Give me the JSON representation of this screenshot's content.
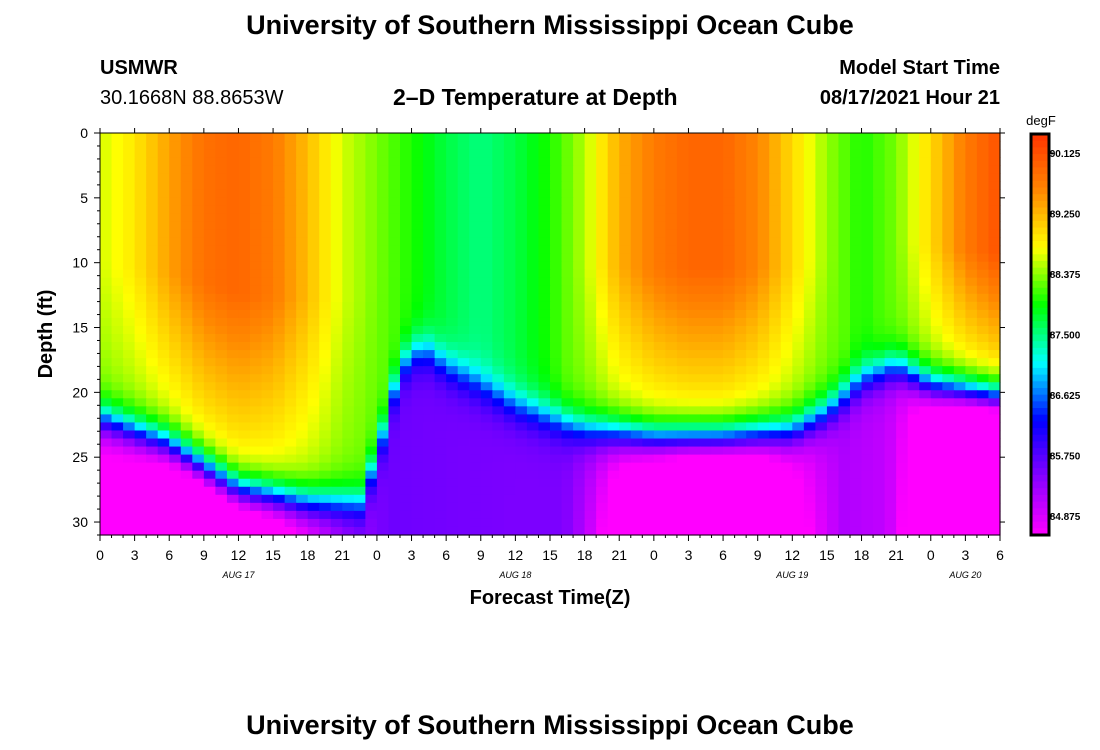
{
  "header": {
    "title": "University of Southern Mississippi Ocean Cube",
    "station_id": "USMWR",
    "coordinates": "30.1668N  88.8653W",
    "plot_title": "2–D Temperature at Depth",
    "model_start_label": "Model Start Time",
    "model_start_value": "08/17/2021 Hour 21"
  },
  "footer": {
    "title": "University of Southern Mississippi Ocean Cube"
  },
  "colors": {
    "background": "#ffffff",
    "colorbar_outline": "#000000",
    "palette": [
      "#ff00ff",
      "#8800ff",
      "#0000ff",
      "#00ffff",
      "#00ff00",
      "#ffff00",
      "#ff8800",
      "#ff3300"
    ]
  },
  "chart_data": {
    "type": "heatmap",
    "title": "2–D Temperature at Depth",
    "xlabel": "Forecast Time(Z)",
    "ylabel": "Depth (ft)",
    "x_unit": "hours since AUG 17 00Z",
    "x_range": [
      0,
      78
    ],
    "ylim": [
      0,
      31
    ],
    "y_inverted": true,
    "x_tick_step": 3,
    "x_ticks": [
      "0",
      "3",
      "6",
      "9",
      "12",
      "15",
      "18",
      "21",
      "0",
      "3",
      "6",
      "9",
      "12",
      "15",
      "18",
      "21",
      "0",
      "3",
      "6",
      "9",
      "12",
      "15",
      "18",
      "21",
      "0",
      "3",
      "6"
    ],
    "date_labels": [
      {
        "label": "AUG 17",
        "hour": 12
      },
      {
        "label": "AUG 18",
        "hour": 36
      },
      {
        "label": "AUG 19",
        "hour": 60
      },
      {
        "label": "AUG 20",
        "hour": 75
      }
    ],
    "y_ticks": [
      "0",
      "5",
      "10",
      "15",
      "20",
      "25",
      "30"
    ],
    "y_tick_values": [
      0,
      5,
      10,
      15,
      20,
      25,
      30
    ],
    "colorbar": {
      "label": "degF",
      "min": 84.6,
      "max": 90.4,
      "tick_labels": [
        "90.125",
        "89.250",
        "88.375",
        "87.500",
        "86.625",
        "85.750",
        "84.875"
      ],
      "tick_values": [
        90.125,
        89.25,
        88.375,
        87.5,
        86.625,
        85.75,
        84.875
      ]
    },
    "surface_temp_degF": {
      "hours": [
        0,
        3,
        6,
        9,
        12,
        15,
        18,
        21,
        24,
        27,
        30,
        33,
        36,
        39,
        42,
        45,
        48,
        51,
        54,
        57,
        60,
        63,
        66,
        69,
        72,
        75,
        78
      ],
      "values": [
        88.6,
        88.9,
        89.4,
        89.8,
        89.9,
        89.7,
        89.2,
        88.6,
        88.3,
        88.0,
        87.7,
        87.5,
        87.7,
        88.0,
        88.5,
        89.3,
        89.7,
        89.9,
        89.9,
        89.6,
        89.0,
        88.4,
        88.0,
        88.3,
        89.0,
        89.7,
        90.1
      ]
    },
    "bottom_temp_degF": {
      "hours": [
        0,
        12,
        24,
        36,
        48,
        60,
        72,
        78
      ],
      "values": [
        84.9,
        85.4,
        85.6,
        85.5,
        85.5,
        85.3,
        84.9,
        85.0
      ]
    },
    "thermocline_depth_ft": {
      "hours": [
        0,
        6,
        12,
        18,
        22.5,
        24,
        26,
        28,
        30,
        36,
        42,
        48,
        54,
        60,
        63,
        66,
        69,
        72,
        78
      ],
      "values": [
        22,
        24,
        27.5,
        28.5,
        28.5,
        25,
        18,
        16.5,
        18,
        21,
        22.8,
        23.5,
        23.5,
        23,
        21.5,
        19,
        18,
        19.5,
        20.5
      ]
    }
  }
}
